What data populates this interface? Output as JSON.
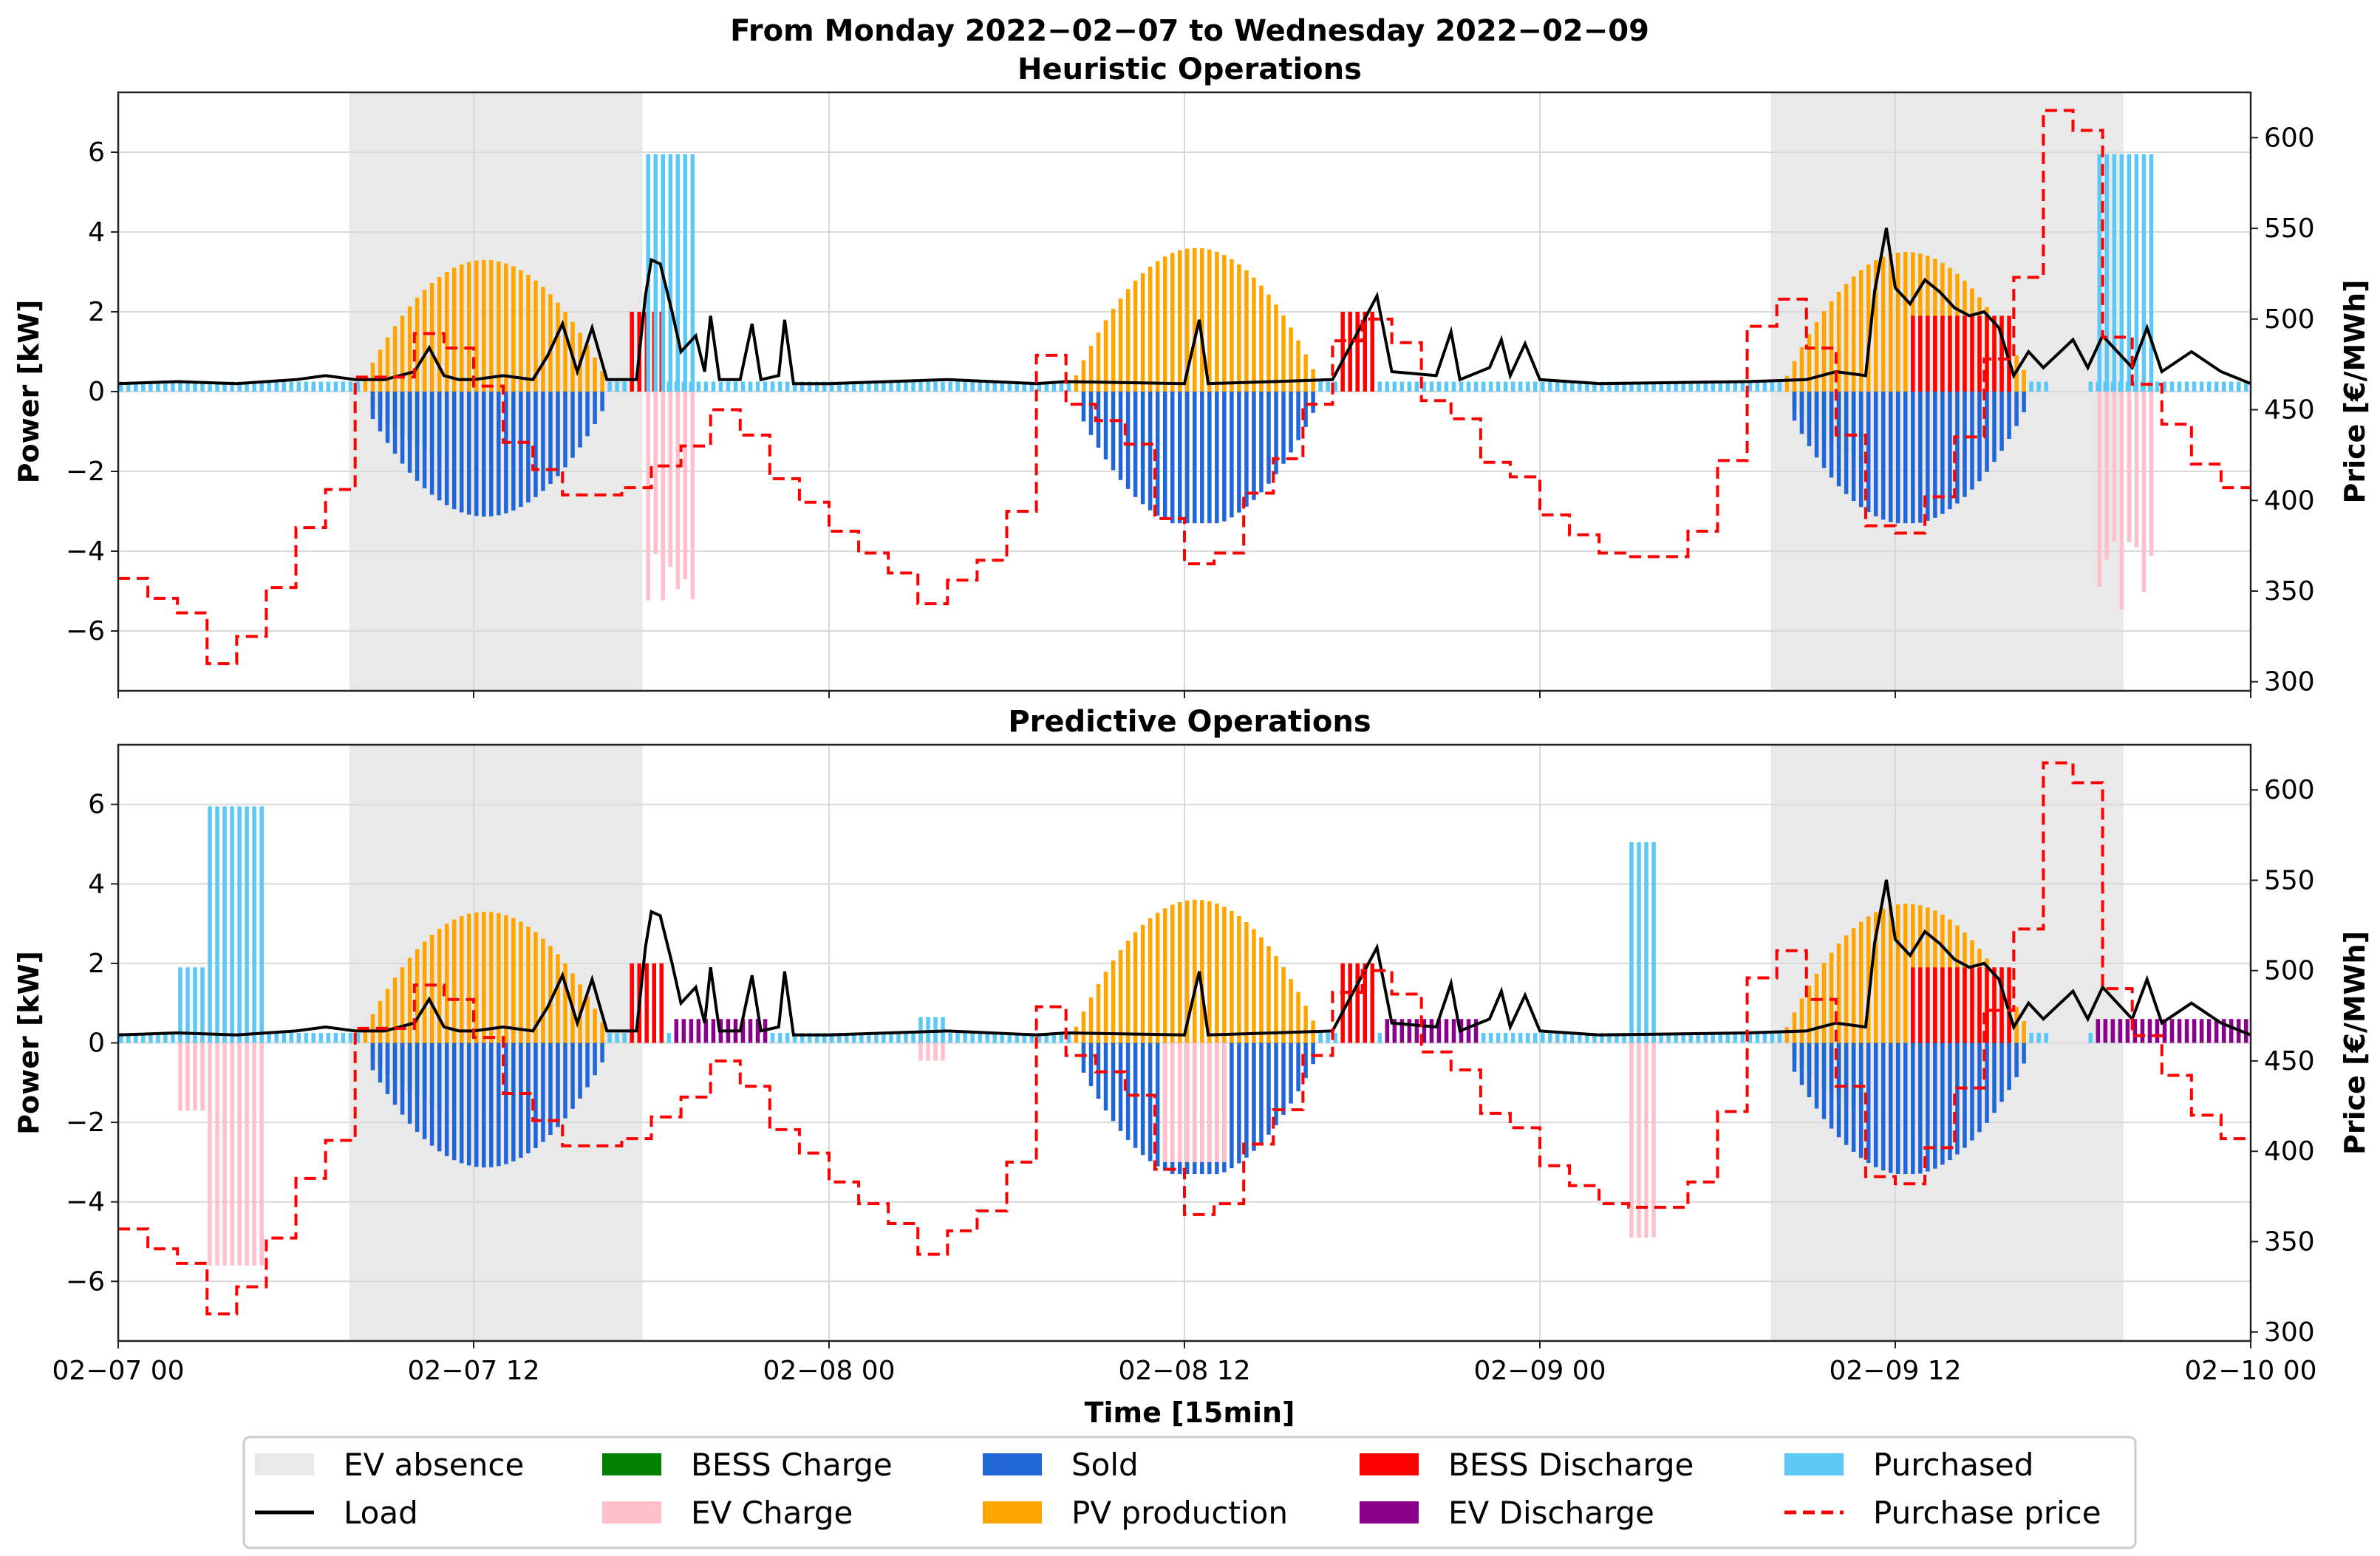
{
  "chart_data": {
    "type": "bar",
    "title": "From Monday 2022−02−07 to Wednesday 2022−02−09",
    "xlabel": "Time [15min]",
    "x_ticks": [
      "02−07 00",
      "02−07 12",
      "02−08 00",
      "02−08 12",
      "02−09 00",
      "02−09 12",
      "02−10 00"
    ],
    "x_range_hours": [
      0,
      72
    ],
    "ylabel_left": "Power [kW]",
    "ylabel_right": "Price [€/MWh]",
    "ylim_left": [
      -7.5,
      7.5
    ],
    "yticks_left": [
      -6,
      -4,
      -2,
      0,
      2,
      4,
      6
    ],
    "ylim_right": [
      295,
      625
    ],
    "yticks_right": [
      300,
      350,
      400,
      450,
      500,
      550,
      600
    ],
    "colors": {
      "ev_absence": "#e9e9e9",
      "bess_charge": "#008000",
      "sold": "#2166d6",
      "bess_discharge": "#ff0000",
      "purchased": "#5bc8f5",
      "load": "#000000",
      "ev_charge": "#ffc0cb",
      "pv_production": "#ffa500",
      "ev_discharge": "#8b008b",
      "purchase_price": "#ff0000"
    },
    "purchase_price_steps": [
      [
        0,
        357
      ],
      [
        1,
        357
      ],
      [
        1,
        346
      ],
      [
        2,
        346
      ],
      [
        2,
        338
      ],
      [
        3,
        338
      ],
      [
        3,
        310
      ],
      [
        4,
        310
      ],
      [
        4,
        325
      ],
      [
        5,
        325
      ],
      [
        5,
        352
      ],
      [
        6,
        352
      ],
      [
        6,
        385
      ],
      [
        7,
        385
      ],
      [
        7,
        406
      ],
      [
        8,
        406
      ],
      [
        8,
        468
      ],
      [
        10,
        468
      ],
      [
        10,
        492
      ],
      [
        11,
        492
      ],
      [
        11,
        484
      ],
      [
        12,
        484
      ],
      [
        12,
        463
      ],
      [
        13,
        463
      ],
      [
        13,
        432
      ],
      [
        14,
        432
      ],
      [
        14,
        417
      ],
      [
        15,
        417
      ],
      [
        15,
        403
      ],
      [
        17,
        403
      ],
      [
        17,
        407
      ],
      [
        18,
        407
      ],
      [
        18,
        419
      ],
      [
        19,
        419
      ],
      [
        19,
        430
      ],
      [
        20,
        430
      ],
      [
        20,
        450
      ],
      [
        21,
        450
      ],
      [
        21,
        436
      ],
      [
        22,
        436
      ],
      [
        22,
        412
      ],
      [
        23,
        412
      ],
      [
        23,
        399
      ],
      [
        24,
        399
      ],
      [
        24,
        383
      ],
      [
        25,
        383
      ],
      [
        25,
        371
      ],
      [
        26,
        371
      ],
      [
        26,
        360
      ],
      [
        27,
        360
      ],
      [
        27,
        343
      ],
      [
        28,
        343
      ],
      [
        28,
        356
      ],
      [
        29,
        356
      ],
      [
        29,
        367
      ],
      [
        30,
        367
      ],
      [
        30,
        394
      ],
      [
        31,
        394
      ],
      [
        31,
        480
      ],
      [
        32,
        480
      ],
      [
        32,
        453
      ],
      [
        33,
        453
      ],
      [
        33,
        444
      ],
      [
        34,
        444
      ],
      [
        34,
        431
      ],
      [
        35,
        431
      ],
      [
        35,
        390
      ],
      [
        36,
        390
      ],
      [
        36,
        365
      ],
      [
        37,
        365
      ],
      [
        37,
        371
      ],
      [
        38,
        371
      ],
      [
        38,
        404
      ],
      [
        39,
        404
      ],
      [
        39,
        423
      ],
      [
        40,
        423
      ],
      [
        40,
        453
      ],
      [
        41,
        453
      ],
      [
        41,
        488
      ],
      [
        42,
        488
      ],
      [
        42,
        500
      ],
      [
        43,
        500
      ],
      [
        43,
        487
      ],
      [
        44,
        487
      ],
      [
        44,
        455
      ],
      [
        45,
        455
      ],
      [
        45,
        445
      ],
      [
        46,
        445
      ],
      [
        46,
        421
      ],
      [
        47,
        421
      ],
      [
        47,
        413
      ],
      [
        48,
        413
      ],
      [
        48,
        392
      ],
      [
        49,
        392
      ],
      [
        49,
        381
      ],
      [
        50,
        381
      ],
      [
        50,
        371
      ],
      [
        51,
        371
      ],
      [
        51,
        369
      ],
      [
        53,
        369
      ],
      [
        53,
        383
      ],
      [
        54,
        383
      ],
      [
        54,
        422
      ],
      [
        55,
        422
      ],
      [
        55,
        496
      ],
      [
        56,
        496
      ],
      [
        56,
        511
      ],
      [
        57,
        511
      ],
      [
        57,
        484
      ],
      [
        58,
        484
      ],
      [
        58,
        436
      ],
      [
        59,
        436
      ],
      [
        59,
        386
      ],
      [
        60,
        386
      ],
      [
        60,
        382
      ],
      [
        61,
        382
      ],
      [
        61,
        402
      ],
      [
        62,
        402
      ],
      [
        62,
        435
      ],
      [
        63,
        435
      ],
      [
        63,
        478
      ],
      [
        64,
        478
      ],
      [
        64,
        523
      ],
      [
        65,
        523
      ],
      [
        65,
        615
      ],
      [
        66,
        615
      ],
      [
        66,
        604
      ],
      [
        67,
        604
      ],
      [
        67,
        490
      ],
      [
        68,
        490
      ],
      [
        68,
        464
      ],
      [
        69,
        464
      ],
      [
        69,
        442
      ],
      [
        70,
        442
      ],
      [
        70,
        420
      ],
      [
        71,
        420
      ],
      [
        71,
        407
      ],
      [
        72,
        407
      ]
    ],
    "panels": [
      {
        "title": "Heuristic Operations",
        "ev_absence_hours": [
          [
            7.8,
            17.7
          ],
          [
            55.8,
            67.7
          ]
        ],
        "load_points": [
          [
            0,
            0.2
          ],
          [
            2,
            0.25
          ],
          [
            4,
            0.2
          ],
          [
            6,
            0.3
          ],
          [
            7,
            0.4
          ],
          [
            8,
            0.3
          ],
          [
            9,
            0.3
          ],
          [
            10,
            0.5
          ],
          [
            10.5,
            1.1
          ],
          [
            11,
            0.4
          ],
          [
            11.5,
            0.3
          ],
          [
            12,
            0.3
          ],
          [
            13,
            0.4
          ],
          [
            14,
            0.3
          ],
          [
            14.5,
            0.9
          ],
          [
            15,
            1.7
          ],
          [
            15.5,
            0.5
          ],
          [
            16,
            1.6
          ],
          [
            16.5,
            0.3
          ],
          [
            17.5,
            0.3
          ],
          [
            17.8,
            2.4
          ],
          [
            18,
            3.3
          ],
          [
            18.3,
            3.2
          ],
          [
            18.7,
            2.0
          ],
          [
            19,
            1.0
          ],
          [
            19.5,
            1.4
          ],
          [
            19.8,
            0.5
          ],
          [
            20,
            1.9
          ],
          [
            20.3,
            0.3
          ],
          [
            21,
            0.3
          ],
          [
            21.4,
            1.7
          ],
          [
            21.7,
            0.3
          ],
          [
            22.3,
            0.4
          ],
          [
            22.5,
            1.8
          ],
          [
            22.8,
            0.2
          ],
          [
            24,
            0.2
          ],
          [
            28,
            0.3
          ],
          [
            31,
            0.2
          ],
          [
            32,
            0.25
          ],
          [
            36,
            0.2
          ],
          [
            36.5,
            1.8
          ],
          [
            36.8,
            0.2
          ],
          [
            39,
            0.25
          ],
          [
            41,
            0.3
          ],
          [
            42.5,
            2.4
          ],
          [
            43,
            0.5
          ],
          [
            44.5,
            0.4
          ],
          [
            45,
            1.5
          ],
          [
            45.3,
            0.3
          ],
          [
            46.3,
            0.6
          ],
          [
            46.7,
            1.3
          ],
          [
            47,
            0.4
          ],
          [
            47.5,
            1.2
          ],
          [
            48,
            0.3
          ],
          [
            50,
            0.2
          ],
          [
            55,
            0.25
          ],
          [
            57,
            0.3
          ],
          [
            58,
            0.5
          ],
          [
            59,
            0.4
          ],
          [
            59.3,
            2.5
          ],
          [
            59.7,
            4.1
          ],
          [
            60,
            2.6
          ],
          [
            60.5,
            2.2
          ],
          [
            61,
            2.8
          ],
          [
            61.5,
            2.5
          ],
          [
            62,
            2.1
          ],
          [
            62.5,
            1.9
          ],
          [
            63,
            2.0
          ],
          [
            63.5,
            1.6
          ],
          [
            64,
            0.4
          ],
          [
            64.5,
            1.0
          ],
          [
            65,
            0.6
          ],
          [
            66,
            1.3
          ],
          [
            66.5,
            0.6
          ],
          [
            67,
            1.4
          ],
          [
            68,
            0.6
          ],
          [
            68.5,
            1.6
          ],
          [
            69,
            0.5
          ],
          [
            70,
            1.0
          ],
          [
            71,
            0.5
          ],
          [
            72,
            0.2
          ]
        ]
      },
      {
        "title": "Predictive Operations",
        "ev_absence_hours": [
          [
            7.8,
            17.7
          ],
          [
            55.8,
            67.7
          ]
        ],
        "load_points": [
          [
            0,
            0.2
          ],
          [
            2,
            0.25
          ],
          [
            4,
            0.2
          ],
          [
            6,
            0.3
          ],
          [
            7,
            0.4
          ],
          [
            8,
            0.3
          ],
          [
            9,
            0.3
          ],
          [
            10,
            0.5
          ],
          [
            10.5,
            1.1
          ],
          [
            11,
            0.4
          ],
          [
            11.5,
            0.3
          ],
          [
            12,
            0.3
          ],
          [
            13,
            0.4
          ],
          [
            14,
            0.3
          ],
          [
            14.5,
            0.9
          ],
          [
            15,
            1.7
          ],
          [
            15.5,
            0.5
          ],
          [
            16,
            1.6
          ],
          [
            16.5,
            0.3
          ],
          [
            17.5,
            0.3
          ],
          [
            17.8,
            2.4
          ],
          [
            18,
            3.3
          ],
          [
            18.3,
            3.2
          ],
          [
            18.7,
            2.0
          ],
          [
            19,
            1.0
          ],
          [
            19.5,
            1.4
          ],
          [
            19.8,
            0.5
          ],
          [
            20,
            1.9
          ],
          [
            20.3,
            0.3
          ],
          [
            21,
            0.3
          ],
          [
            21.4,
            1.7
          ],
          [
            21.7,
            0.3
          ],
          [
            22.3,
            0.4
          ],
          [
            22.5,
            1.8
          ],
          [
            22.8,
            0.2
          ],
          [
            24,
            0.2
          ],
          [
            28,
            0.3
          ],
          [
            31,
            0.2
          ],
          [
            32,
            0.25
          ],
          [
            36,
            0.2
          ],
          [
            36.5,
            1.8
          ],
          [
            36.8,
            0.2
          ],
          [
            39,
            0.25
          ],
          [
            41,
            0.3
          ],
          [
            42.5,
            2.4
          ],
          [
            43,
            0.5
          ],
          [
            44.5,
            0.4
          ],
          [
            45,
            1.5
          ],
          [
            45.3,
            0.3
          ],
          [
            46.3,
            0.6
          ],
          [
            46.7,
            1.3
          ],
          [
            47,
            0.4
          ],
          [
            47.5,
            1.2
          ],
          [
            48,
            0.3
          ],
          [
            50,
            0.2
          ],
          [
            55,
            0.25
          ],
          [
            57,
            0.3
          ],
          [
            58,
            0.5
          ],
          [
            59,
            0.4
          ],
          [
            59.3,
            2.5
          ],
          [
            59.7,
            4.1
          ],
          [
            60,
            2.6
          ],
          [
            60.5,
            2.2
          ],
          [
            61,
            2.8
          ],
          [
            61.5,
            2.5
          ],
          [
            62,
            2.1
          ],
          [
            62.5,
            1.9
          ],
          [
            63,
            2.0
          ],
          [
            63.5,
            1.6
          ],
          [
            64,
            0.4
          ],
          [
            64.5,
            1.0
          ],
          [
            65,
            0.6
          ],
          [
            66,
            1.3
          ],
          [
            66.5,
            0.6
          ],
          [
            67,
            1.4
          ],
          [
            68,
            0.6
          ],
          [
            68.5,
            1.6
          ],
          [
            69,
            0.5
          ],
          [
            70,
            1.0
          ],
          [
            71,
            0.5
          ],
          [
            72,
            0.2
          ]
        ],
        "extra_bars": [
          {
            "series": "purchased",
            "from": 2,
            "to": 3,
            "value": 1.9
          },
          {
            "series": "ev_charge",
            "from": 2,
            "to": 3,
            "value": -1.7
          },
          {
            "series": "purchased",
            "from": 3,
            "to": 5,
            "value": 5.95
          },
          {
            "series": "ev_charge",
            "from": 3,
            "to": 5,
            "value": -5.6
          },
          {
            "series": "purchased",
            "from": 27,
            "to": 28,
            "value": 0.65
          },
          {
            "series": "ev_charge",
            "from": 27,
            "to": 28,
            "value": -0.45
          },
          {
            "series": "purchased",
            "from": 51,
            "to": 52,
            "value": 5.05
          },
          {
            "series": "ev_charge",
            "from": 51,
            "to": 52,
            "value": -4.9
          }
        ]
      }
    ],
    "legend": [
      {
        "key": "ev_absence",
        "label": "EV absence",
        "kind": "patch"
      },
      {
        "key": "load",
        "label": "Load",
        "kind": "line"
      },
      {
        "key": "bess_charge",
        "label": "BESS Charge",
        "kind": "patch"
      },
      {
        "key": "ev_charge",
        "label": "EV Charge",
        "kind": "patch"
      },
      {
        "key": "sold",
        "label": "Sold",
        "kind": "patch"
      },
      {
        "key": "pv_production",
        "label": "PV production",
        "kind": "patch"
      },
      {
        "key": "bess_discharge",
        "label": "BESS Discharge",
        "kind": "patch"
      },
      {
        "key": "ev_discharge",
        "label": "EV Discharge",
        "kind": "patch"
      },
      {
        "key": "purchased",
        "label": "Purchased",
        "kind": "patch"
      },
      {
        "key": "purchase_price",
        "label": "Purchase price",
        "kind": "dashed-line"
      }
    ]
  }
}
